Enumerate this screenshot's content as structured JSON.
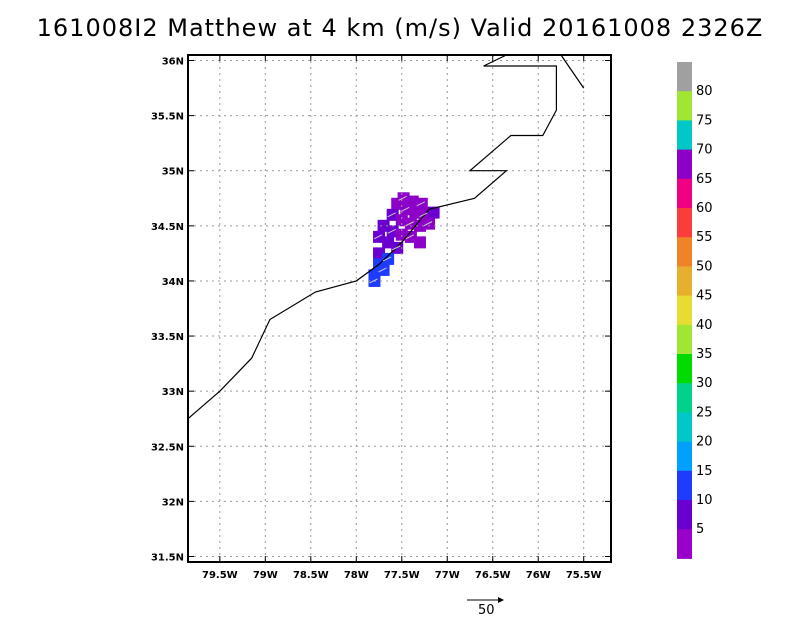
{
  "title": "161008I2 Matthew at 4 km (m/s) Valid 20161008 2326Z",
  "lon_labels": [
    "79.5W",
    "79W",
    "78.5W",
    "78W",
    "77.5W",
    "77W",
    "76.5W",
    "76W",
    "75.5W"
  ],
  "lon_values": [
    -79.5,
    -79,
    -78.5,
    -78,
    -77.5,
    -77,
    -76.5,
    -76,
    -75.5
  ],
  "lat_labels": [
    "36N",
    "35.5N",
    "35N",
    "34.5N",
    "34N",
    "33.5N",
    "33N",
    "32.5N",
    "32N",
    "31.5N"
  ],
  "lat_values": [
    36,
    35.5,
    35,
    34.5,
    34,
    33.5,
    33,
    32.5,
    32,
    31.5
  ],
  "extent": {
    "lon_min": -79.85,
    "lon_max": -75.2,
    "lat_min": 31.45,
    "lat_max": 36.05
  },
  "colorbar": {
    "labels": [
      "5",
      "10",
      "15",
      "20",
      "25",
      "30",
      "35",
      "40",
      "45",
      "50",
      "55",
      "60",
      "65",
      "70",
      "75",
      "80"
    ],
    "colors": [
      "#9900cc",
      "#6a00d0",
      "#1e3cff",
      "#00a0ff",
      "#00c8c8",
      "#00d28c",
      "#00dc00",
      "#a0e632",
      "#e6dc32",
      "#e6af2d",
      "#f08228",
      "#fa3c3c",
      "#f00082",
      "#8c00c8",
      "#00c8c8",
      "#a0e632",
      "#a0a0a0"
    ]
  },
  "reference_vector": {
    "label": "50"
  },
  "coastline": [
    [
      -79.85,
      32.75
    ],
    [
      -79.5,
      33.0
    ],
    [
      -79.15,
      33.3
    ],
    [
      -78.95,
      33.65
    ],
    [
      -78.45,
      33.9
    ],
    [
      -78.0,
      34.0
    ],
    [
      -77.75,
      34.15
    ],
    [
      -77.5,
      34.35
    ],
    [
      -77.2,
      34.65
    ],
    [
      -76.7,
      34.75
    ],
    [
      -76.35,
      35.0
    ],
    [
      -76.75,
      35.0
    ],
    [
      -76.3,
      35.32
    ],
    [
      -75.95,
      35.32
    ],
    [
      -75.8,
      35.55
    ],
    [
      -75.8,
      35.95
    ],
    [
      -76.6,
      35.95
    ],
    [
      -76.35,
      36.05
    ]
  ],
  "coastline2": [
    [
      -75.75,
      36.05
    ],
    [
      -75.5,
      35.75
    ]
  ],
  "wind_cells": [
    {
      "lon": -77.48,
      "lat": 34.75,
      "v": 70
    },
    {
      "lon": -77.38,
      "lat": 34.72,
      "v": 70
    },
    {
      "lon": -77.28,
      "lat": 34.7,
      "v": 70
    },
    {
      "lon": -77.55,
      "lat": 34.7,
      "v": 70
    },
    {
      "lon": -77.45,
      "lat": 34.65,
      "v": 70
    },
    {
      "lon": -77.35,
      "lat": 34.62,
      "v": 70
    },
    {
      "lon": -77.25,
      "lat": 34.6,
      "v": 70
    },
    {
      "lon": -77.15,
      "lat": 34.62,
      "v": 10
    },
    {
      "lon": -77.6,
      "lat": 34.6,
      "v": 10
    },
    {
      "lon": -77.5,
      "lat": 34.55,
      "v": 70
    },
    {
      "lon": -77.4,
      "lat": 34.52,
      "v": 70
    },
    {
      "lon": -77.3,
      "lat": 34.5,
      "v": 70
    },
    {
      "lon": -77.2,
      "lat": 34.52,
      "v": 70
    },
    {
      "lon": -77.7,
      "lat": 34.5,
      "v": 10
    },
    {
      "lon": -77.6,
      "lat": 34.45,
      "v": 10
    },
    {
      "lon": -77.5,
      "lat": 34.42,
      "v": 70
    },
    {
      "lon": -77.4,
      "lat": 34.4,
      "v": 70
    },
    {
      "lon": -77.3,
      "lat": 34.35,
      "v": 70
    },
    {
      "lon": -77.75,
      "lat": 34.4,
      "v": 10
    },
    {
      "lon": -77.65,
      "lat": 34.35,
      "v": 10
    },
    {
      "lon": -77.55,
      "lat": 34.3,
      "v": 10
    },
    {
      "lon": -77.75,
      "lat": 34.25,
      "v": 10
    },
    {
      "lon": -77.65,
      "lat": 34.2,
      "v": 15
    },
    {
      "lon": -77.75,
      "lat": 34.15,
      "v": 15
    },
    {
      "lon": -77.7,
      "lat": 34.1,
      "v": 15
    },
    {
      "lon": -77.8,
      "lat": 34.05,
      "v": 15
    },
    {
      "lon": -77.8,
      "lat": 34.0,
      "v": 15
    }
  ]
}
